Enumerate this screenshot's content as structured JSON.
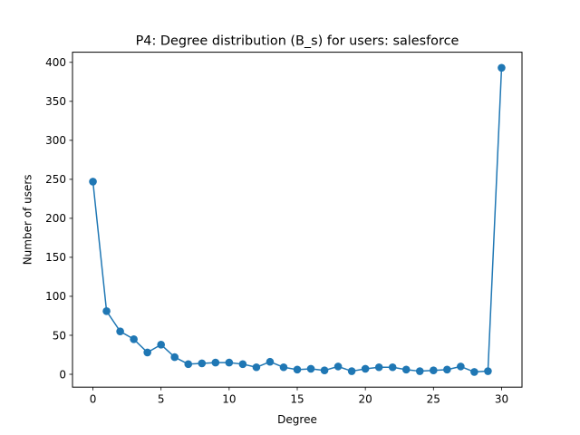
{
  "chart_data": {
    "type": "line",
    "title": "P4: Degree distribution (B_s) for users: salesforce",
    "xlabel": "Degree",
    "ylabel": "Number of users",
    "xlim": [
      -1.5,
      31.5
    ],
    "ylim": [
      -16.5,
      413
    ],
    "xticks": [
      0,
      5,
      10,
      15,
      20,
      25,
      30
    ],
    "yticks": [
      0,
      50,
      100,
      150,
      200,
      250,
      300,
      350,
      400
    ],
    "grid": false,
    "marker": "circle",
    "color": "#1f77b4",
    "series": [
      {
        "x": [
          0,
          1,
          2,
          3,
          4,
          5,
          6,
          7,
          8,
          9,
          10,
          11,
          12,
          13,
          14,
          15,
          16,
          17,
          18,
          19,
          20,
          21,
          22,
          23,
          24,
          25,
          26,
          27,
          28,
          29,
          30
        ],
        "values": [
          247,
          81,
          55,
          45,
          28,
          38,
          22,
          13,
          14,
          15,
          15,
          13,
          9,
          16,
          9,
          6,
          7,
          5,
          10,
          4,
          7,
          9,
          9,
          6,
          4,
          5,
          6,
          10,
          3,
          4,
          393
        ]
      }
    ]
  }
}
